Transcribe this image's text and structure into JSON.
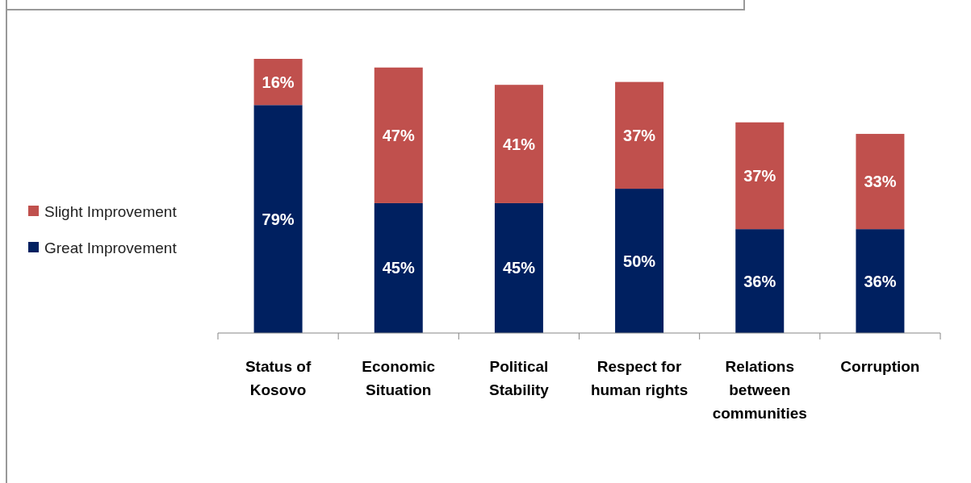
{
  "chart_data": {
    "type": "bar",
    "stacked": true,
    "categories": [
      "Status of Kosovo",
      "Economic Situation",
      "Political Stability",
      "Respect for human rights",
      "Relations between communities",
      "Corruption"
    ],
    "series": [
      {
        "name": "Great Improvement",
        "color": "#002060",
        "values": [
          79,
          45,
          45,
          50,
          36,
          36
        ],
        "value_labels": [
          "79%",
          "45%",
          "45%",
          "50%",
          "36%",
          "36%"
        ]
      },
      {
        "name": "Slight Improvement",
        "color": "#c0504d",
        "values": [
          16,
          47,
          41,
          37,
          37,
          33
        ],
        "value_labels": [
          "16%",
          "47%",
          "41%",
          "37%",
          "37%",
          "33%"
        ]
      }
    ],
    "legend": "left"
  }
}
